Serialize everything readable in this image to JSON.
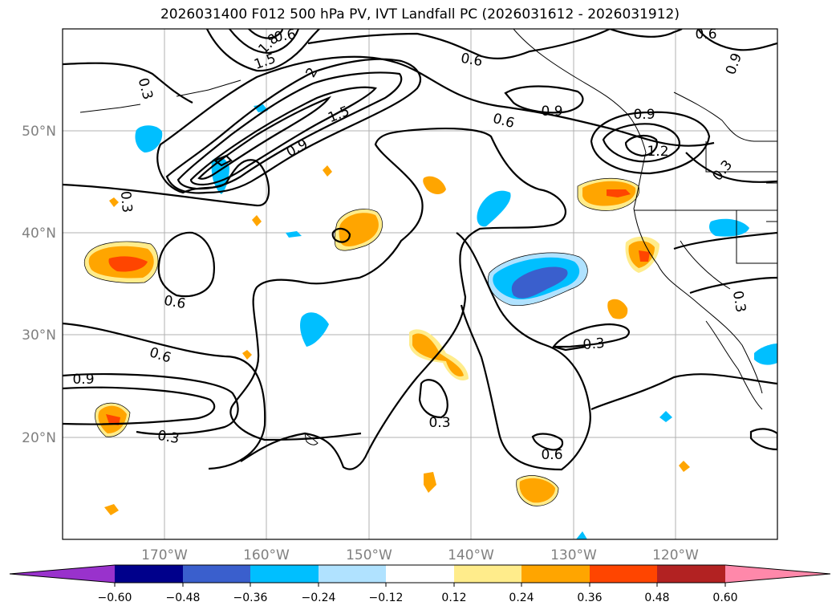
{
  "title": "2026031400 F012 500 hPa PV, IVT Landfall PC (2026031612 - 2026031912)",
  "map": {
    "lon_labels": [
      "170°W",
      "160°W",
      "150°W",
      "140°W",
      "130°W",
      "120°W"
    ],
    "lat_labels": [
      "50°N",
      "40°N",
      "30°N",
      "20°N"
    ]
  },
  "contour_labels": [
    "1.8",
    "1.5",
    "2",
    "0.3",
    "1.5",
    "0.9",
    "0.6",
    "0.6",
    "0.9",
    "0.6",
    "0.3",
    "0.6",
    "0.6",
    "0.9",
    "0.3",
    "0.3",
    "0.6",
    "0.3",
    "0.9",
    "1.2",
    "0.3",
    "0.9",
    "0.3",
    "0.6"
  ],
  "colorbar": {
    "colors": [
      "#9932cc",
      "#00008b",
      "#3a5fcd",
      "#00bfff",
      "#b0e2ff",
      "#ffffff",
      "#ffec8b",
      "#ffa500",
      "#ff4500",
      "#b22222",
      "#ff88aa"
    ],
    "tick_labels": [
      "−0.60",
      "−0.48",
      "−0.36",
      "−0.24",
      "−0.12",
      "0.12",
      "0.24",
      "0.36",
      "0.48",
      "0.60"
    ]
  }
}
